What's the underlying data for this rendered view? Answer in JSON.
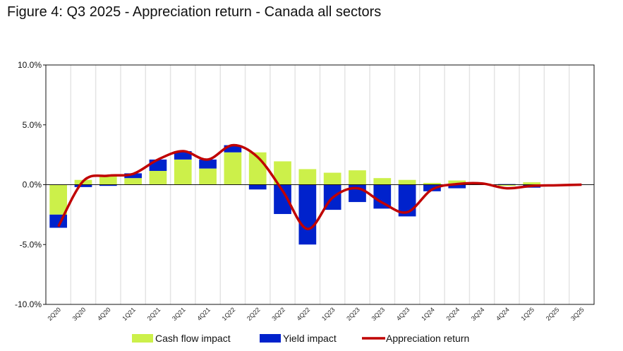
{
  "chart_data": {
    "type": "bar",
    "title": "Figure 4: Q3 2025 - Appreciation return - Canada all sectors",
    "categories": [
      "2Q20",
      "3Q20",
      "4Q20",
      "1Q21",
      "2Q21",
      "3Q21",
      "4Q21",
      "1Q22",
      "2Q22",
      "3Q22",
      "4Q22",
      "1Q23",
      "2Q23",
      "3Q23",
      "4Q23",
      "1Q24",
      "2Q24",
      "3Q24",
      "4Q24",
      "1Q25",
      "2Q25",
      "3Q25"
    ],
    "ylim": [
      -10,
      10
    ],
    "yticks": [
      10,
      5,
      0,
      -5,
      -10
    ],
    "ytick_labels": [
      "10.0%",
      "5.0%",
      "0.0%",
      "-5.0%",
      "-10.0%"
    ],
    "legend_position": "bottom",
    "grid": "vertical",
    "series": [
      {
        "name": "Cash flow impact",
        "kind": "stacked-bar",
        "color": "#ccf04a",
        "values": [
          -2.5,
          0.4,
          0.8,
          0.55,
          1.15,
          2.1,
          1.35,
          2.7,
          2.7,
          1.95,
          1.3,
          1.0,
          1.2,
          0.55,
          0.4,
          0.15,
          0.35,
          0.1,
          -0.1,
          0.2,
          0.0,
          0.0
        ]
      },
      {
        "name": "Yield impact",
        "kind": "stacked-bar",
        "color": "#0022cc",
        "values": [
          -1.1,
          -0.2,
          -0.1,
          0.4,
          0.95,
          0.7,
          0.75,
          0.6,
          -0.4,
          -2.45,
          -5.0,
          -2.1,
          -1.45,
          -2.0,
          -2.65,
          -0.55,
          -0.3,
          0.0,
          0.05,
          -0.25,
          0.0,
          0.0
        ]
      },
      {
        "name": "Appreciation return",
        "kind": "line",
        "color": "#c00000",
        "values": [
          -3.5,
          0.3,
          0.75,
          0.9,
          2.1,
          2.8,
          2.1,
          3.3,
          2.3,
          -0.5,
          -3.7,
          -1.1,
          -0.3,
          -1.5,
          -2.3,
          -0.4,
          0.05,
          0.1,
          -0.3,
          -0.1,
          -0.05,
          0.0
        ]
      }
    ]
  }
}
